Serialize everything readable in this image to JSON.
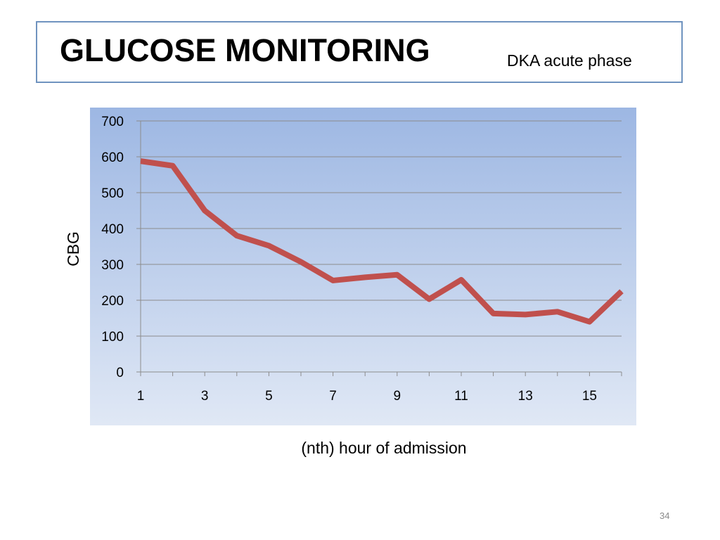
{
  "slide": {
    "title": "GLUCOSE MONITORING",
    "subtitle": "DKA acute phase",
    "page_number": "34"
  },
  "colors": {
    "title_border": "#6f93bf",
    "plot_gradient_top": "#9db7e3",
    "plot_gradient_bottom": "#e0e8f5",
    "series_line": "#c0504d",
    "gridline": "#8c8c8c"
  },
  "chart_data": {
    "type": "line",
    "title": "",
    "xlabel": "(nth) hour of admission",
    "ylabel": "CBG",
    "x": [
      1,
      2,
      3,
      4,
      5,
      6,
      7,
      8,
      9,
      10,
      11,
      12,
      13,
      14,
      15,
      16
    ],
    "x_tick_labels": [
      "1",
      "3",
      "5",
      "7",
      "9",
      "11",
      "13",
      "15"
    ],
    "x_tick_values": [
      1,
      3,
      5,
      7,
      9,
      11,
      13,
      15
    ],
    "y_tick_labels": [
      "0",
      "100",
      "200",
      "300",
      "400",
      "500",
      "600",
      "700"
    ],
    "y_tick_values": [
      0,
      100,
      200,
      300,
      400,
      500,
      600,
      700
    ],
    "ylim": [
      0,
      700
    ],
    "grid": true,
    "series": [
      {
        "values": [
          588,
          575,
          450,
          380,
          352,
          307,
          255,
          264,
          271,
          203,
          257,
          163,
          160,
          168,
          140,
          225
        ]
      }
    ]
  }
}
